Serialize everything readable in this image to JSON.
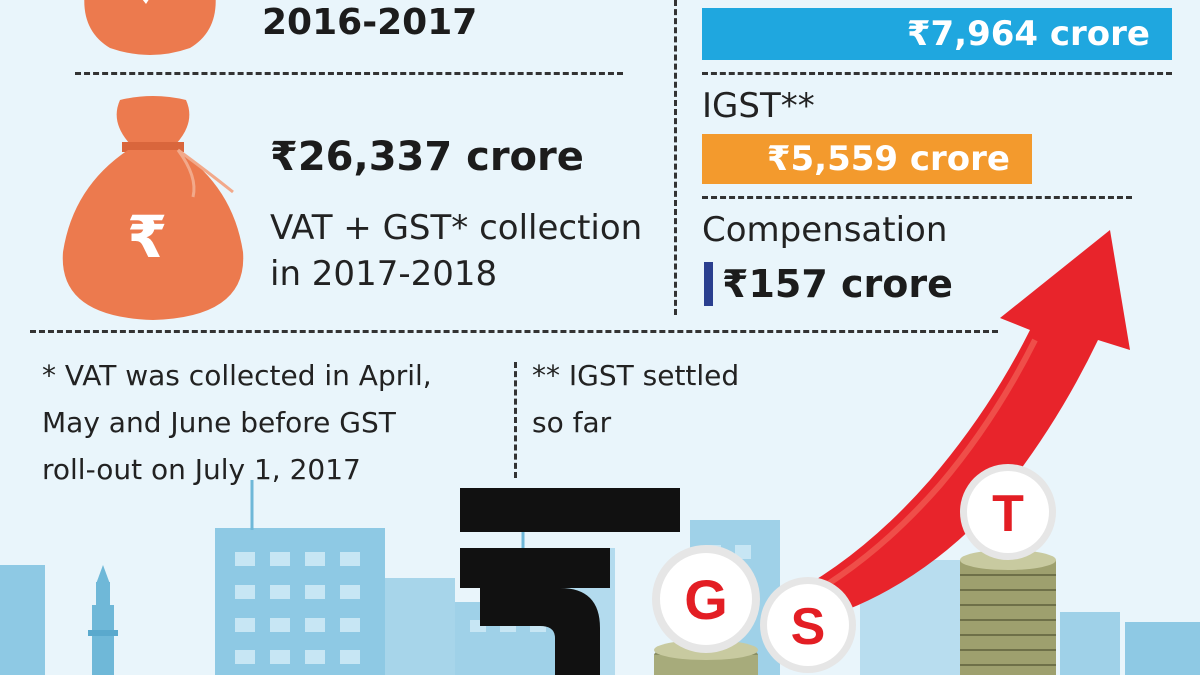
{
  "left": {
    "top_year": "2016-2017",
    "amount": "₹26,337 crore",
    "caption_line1": "VAT + GST* collection",
    "caption_line2": "in 2017-2018",
    "bag_symbol": "₹"
  },
  "right": {
    "first_bar_value": "₹7,964 crore",
    "igst_label": "IGST**",
    "igst_value": "₹5,559 crore",
    "compensation_label": "Compensation",
    "compensation_value": "₹157 crore",
    "bar_colors": {
      "first": "#1fa7df",
      "igst": "#f39a2d",
      "compensation": "#2a3f8f"
    }
  },
  "notes": {
    "vat_note": [
      "* VAT was collected in April,",
      "May and June before GST",
      "roll-out on July 1, 2017"
    ],
    "igst_note": [
      "** IGST settled",
      "so far"
    ]
  },
  "illustration": {
    "rupee_symbol": "₹",
    "coins": [
      "G",
      "S",
      "T"
    ],
    "arrow_color": "#e8242b"
  }
}
